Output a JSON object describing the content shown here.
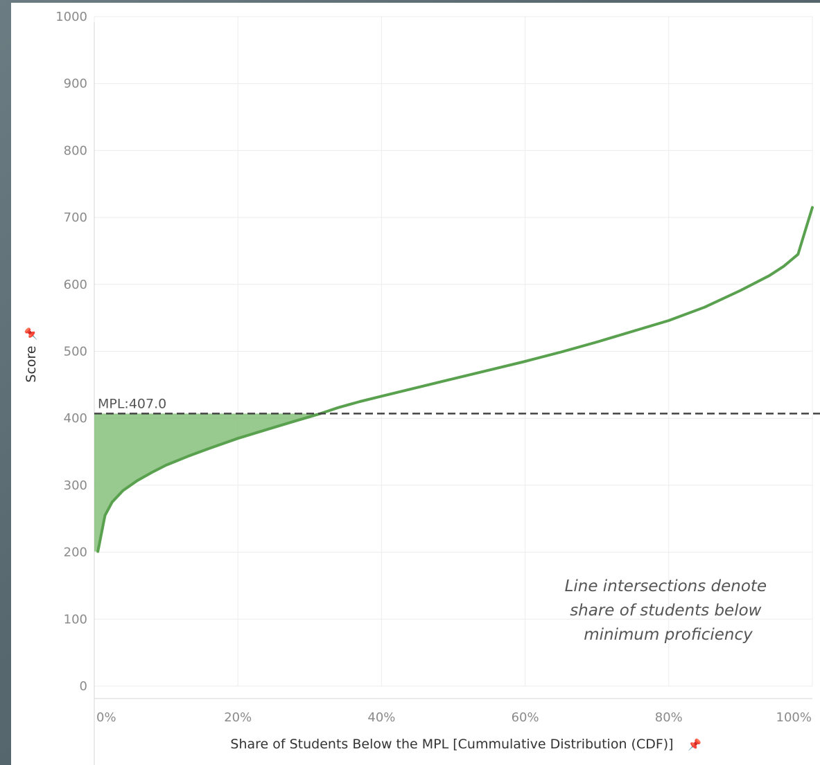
{
  "chart_data": {
    "type": "line",
    "xlabel": "Share of Students Below the MPL [Cummulative Distribution (CDF)]",
    "ylabel": "Score",
    "xlim": [
      0,
      100
    ],
    "ylim": [
      0,
      1000
    ],
    "x_ticks": [
      "0%",
      "20%",
      "40%",
      "60%",
      "80%",
      "100%"
    ],
    "x_tick_values": [
      0,
      20,
      40,
      60,
      80,
      100
    ],
    "y_ticks": [
      "0",
      "100",
      "200",
      "300",
      "400",
      "500",
      "600",
      "700",
      "800",
      "900",
      "1000"
    ],
    "y_tick_values": [
      0,
      100,
      200,
      300,
      400,
      500,
      600,
      700,
      800,
      900,
      1000
    ],
    "grid": true,
    "reference_line": {
      "label": "MPL:407.0",
      "value": 407.0,
      "style": "dashed"
    },
    "annotation": [
      "Line intersections denote",
      "share of students below",
      "minimum proficiency"
    ],
    "pin_icon": "pin-icon",
    "colors": {
      "line": "#59a14f",
      "fill": "#8dc383",
      "reference": "#444444"
    },
    "series": [
      {
        "x": [
          0.5,
          1.5,
          2.5,
          4,
          6,
          8,
          10,
          13,
          16,
          20,
          24,
          28,
          31.5,
          34,
          37,
          40,
          45,
          50,
          55,
          60,
          65,
          70,
          75,
          80,
          85,
          90,
          94,
          96,
          98,
          99,
          100
        ],
        "values": [
          201,
          255,
          275,
          292,
          307,
          319,
          330,
          343,
          355,
          370,
          383,
          396,
          407,
          416,
          425,
          433,
          446,
          459,
          472,
          485,
          499,
          514,
          530,
          546,
          566,
          591,
          613,
          627,
          645,
          680,
          715
        ]
      }
    ]
  }
}
